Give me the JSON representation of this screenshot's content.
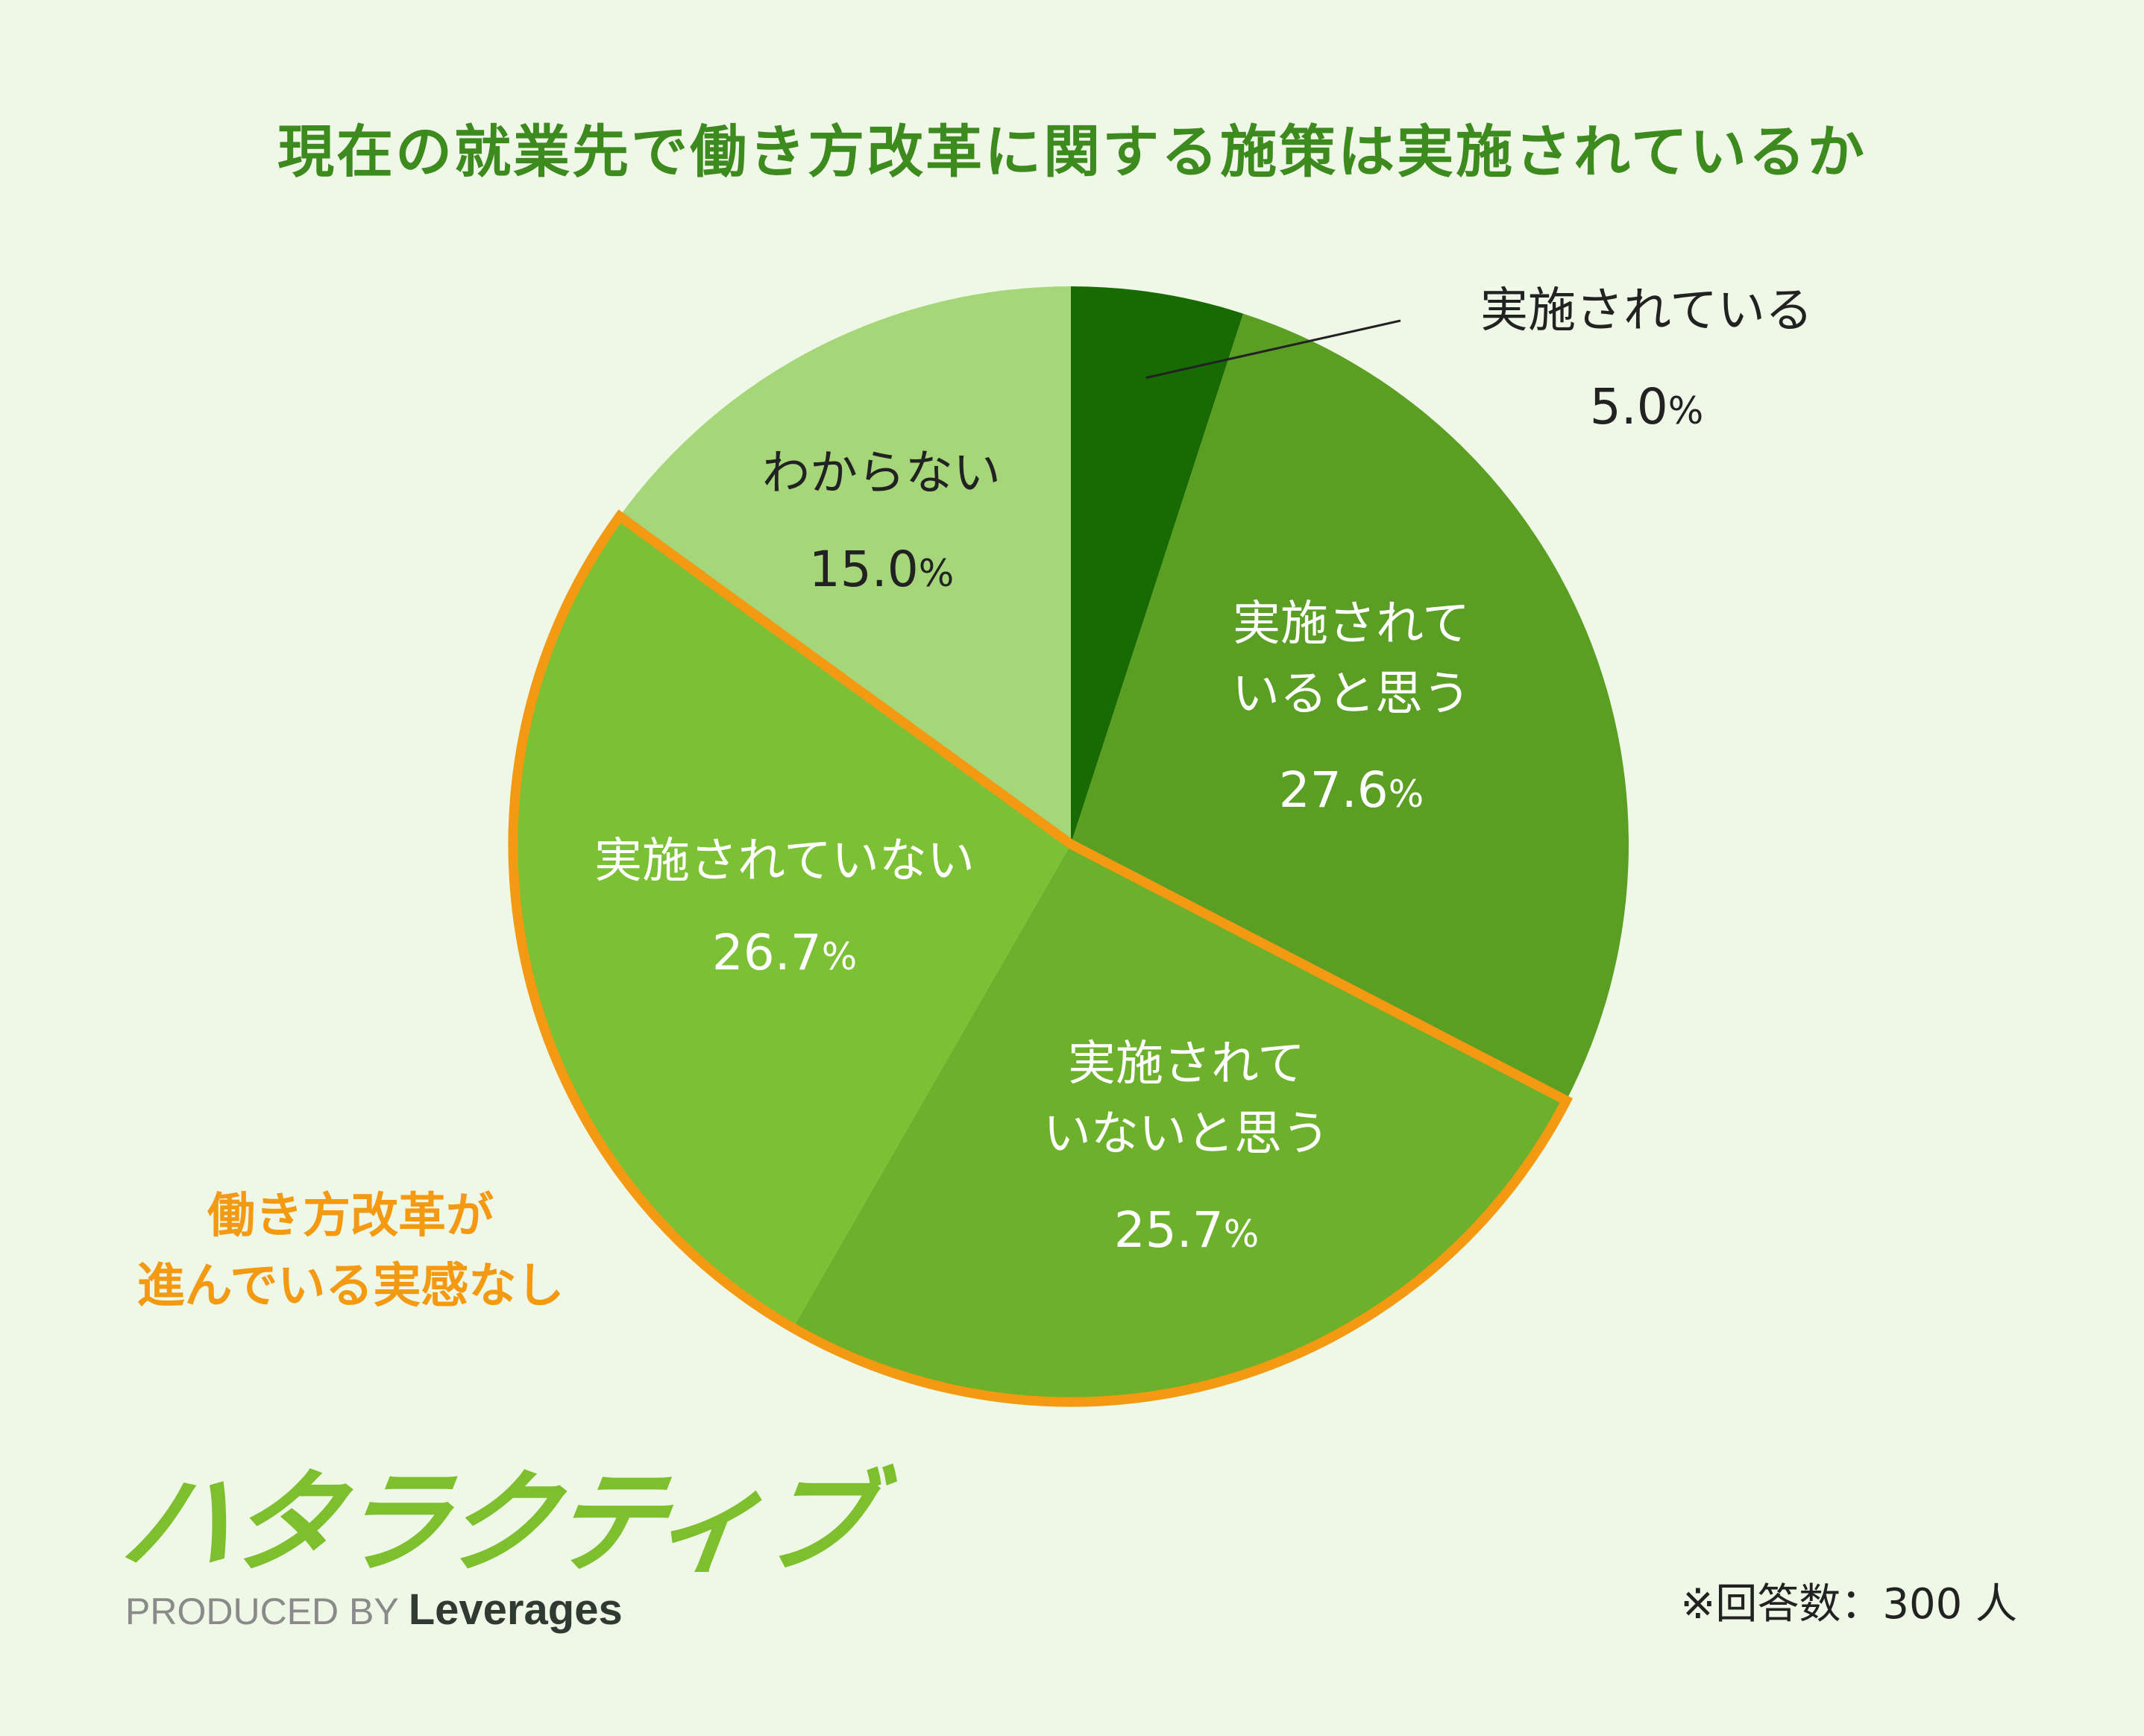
{
  "title": "現在の就業先で働き方改革に関する施策は実施されているか",
  "chart_data": {
    "type": "pie",
    "start": "12 o'clock, clockwise",
    "slices": [
      {
        "label": [
          "実施されている"
        ],
        "value": 5.0,
        "display": "5.0",
        "color": "#176b02",
        "text_color": "#222222",
        "label_outside": true
      },
      {
        "label": [
          "実施されて",
          "いると思う"
        ],
        "value": 27.6,
        "display": "27.6",
        "color": "#5a9e24",
        "text_color": "#ffffff"
      },
      {
        "label": [
          "実施されて",
          "いないと思う"
        ],
        "value": 25.7,
        "display": "25.7",
        "color": "#6cb02c",
        "text_color": "#ffffff"
      },
      {
        "label": [
          "実施されていない"
        ],
        "value": 26.7,
        "display": "26.7",
        "color": "#7bc035",
        "text_color": "#ffffff"
      },
      {
        "label": [
          "わからない"
        ],
        "value": 15.0,
        "display": "15.0",
        "color": "#a5d679",
        "text_color": "#222222"
      }
    ],
    "percent_sign": "%",
    "highlight": {
      "text": [
        "働き方改革が",
        "進んでいる実感なし"
      ],
      "slices": [
        2,
        3
      ],
      "color": "#f39a12"
    }
  },
  "logo": {
    "text": "ハタラクティブ",
    "color": "#7dbf2d"
  },
  "produced_by": {
    "prefix": "PRODUCED BY",
    "brand": "Leverages"
  },
  "note": "※回答数：300 人"
}
